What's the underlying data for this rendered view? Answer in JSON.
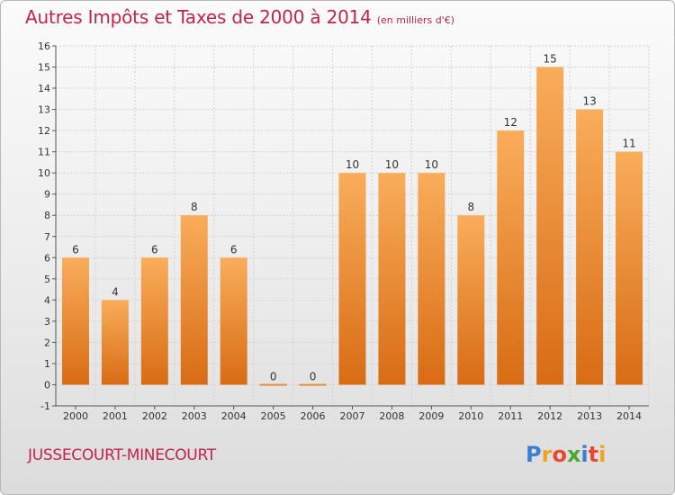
{
  "title": "Autres Impôts et Taxes de 2000 à 2014",
  "subtitle": "(en milliers d'€)",
  "commune": "JUSSECOURT-MINECOURT",
  "logo": {
    "letters": [
      "P",
      "r",
      "o",
      "x",
      "i",
      "t",
      "i"
    ],
    "colors": [
      "#3a7fd4",
      "#f2a31b",
      "#e8492e",
      "#4aa832",
      "#3a7fd4",
      "#e8492e",
      "#f2a31b"
    ]
  },
  "colors": {
    "bar_top": "#f9ad5b",
    "bar_bottom": "#d86c14",
    "title": "#c2244b"
  },
  "chart_data": {
    "type": "bar",
    "categories": [
      "2000",
      "2001",
      "2002",
      "2003",
      "2004",
      "2005",
      "2006",
      "2007",
      "2008",
      "2009",
      "2010",
      "2011",
      "2012",
      "2013",
      "2014"
    ],
    "values": [
      6,
      4,
      6,
      8,
      6,
      0,
      0,
      10,
      10,
      10,
      8,
      12,
      15,
      13,
      11
    ],
    "ylim": [
      -1,
      16
    ],
    "yticks": [
      -1,
      0,
      1,
      2,
      3,
      4,
      5,
      6,
      7,
      8,
      9,
      10,
      11,
      12,
      13,
      14,
      15,
      16
    ],
    "grid": true,
    "title": "Autres Impôts et Taxes de 2000 à 2014",
    "xlabel": "",
    "ylabel": ""
  }
}
